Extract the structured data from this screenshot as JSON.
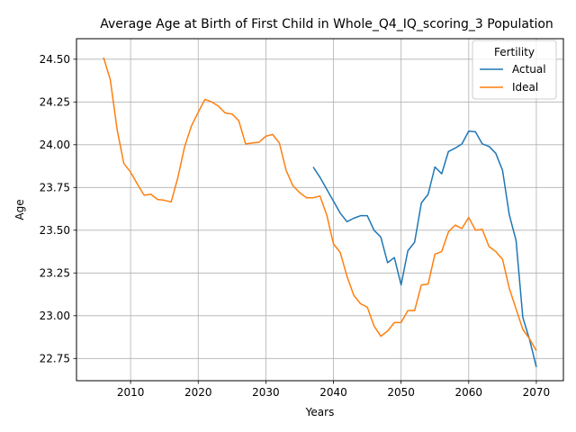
{
  "chart_data": {
    "type": "line",
    "title": "Average Age at Birth of First Child in Whole_Q4_IQ_scoring_3 Population",
    "xlabel": "Years",
    "ylabel": "Age",
    "xlim": [
      2002,
      2074
    ],
    "ylim": [
      22.62,
      24.62
    ],
    "xticks": [
      2010,
      2020,
      2030,
      2040,
      2050,
      2060,
      2070
    ],
    "yticks": [
      22.75,
      23.0,
      23.25,
      23.5,
      23.75,
      24.0,
      24.25,
      24.5
    ],
    "ytick_labels": [
      "22.75",
      "23.00",
      "23.25",
      "23.50",
      "23.75",
      "24.00",
      "24.25",
      "24.50"
    ],
    "grid": true,
    "legend": {
      "title": "Fertility",
      "placement": "top-right"
    },
    "series": [
      {
        "name": "Actual",
        "color": "#1f77b4",
        "x": [
          2037,
          2038,
          2039,
          2040,
          2041,
          2042,
          2043,
          2044,
          2045,
          2046,
          2047,
          2048,
          2049,
          2050,
          2051,
          2052,
          2053,
          2054,
          2055,
          2056,
          2057,
          2058,
          2059,
          2060,
          2061,
          2062,
          2063,
          2064,
          2065,
          2066,
          2067,
          2068,
          2069,
          2070
        ],
        "y": [
          23.87,
          23.81,
          23.74,
          23.67,
          23.6,
          23.55,
          23.57,
          23.585,
          23.585,
          23.5,
          23.46,
          23.31,
          23.34,
          23.18,
          23.38,
          23.43,
          23.66,
          23.71,
          23.87,
          23.83,
          23.96,
          23.98,
          24.005,
          24.08,
          24.075,
          24.005,
          23.99,
          23.95,
          23.85,
          23.59,
          23.44,
          22.99,
          22.86,
          22.7
        ]
      },
      {
        "name": "Ideal",
        "color": "#ff7f0e",
        "x": [
          2006,
          2007,
          2008,
          2009,
          2010,
          2011,
          2012,
          2013,
          2014,
          2015,
          2016,
          2017,
          2018,
          2019,
          2020,
          2021,
          2022,
          2023,
          2024,
          2025,
          2026,
          2027,
          2028,
          2029,
          2030,
          2031,
          2032,
          2033,
          2034,
          2035,
          2036,
          2037,
          2038,
          2039,
          2040,
          2041,
          2042,
          2043,
          2044,
          2045,
          2046,
          2047,
          2048,
          2049,
          2050,
          2051,
          2052,
          2053,
          2054,
          2055,
          2056,
          2057,
          2058,
          2059,
          2060,
          2061,
          2062,
          2063,
          2064,
          2065,
          2066,
          2067,
          2068,
          2069,
          2070
        ],
        "y": [
          24.51,
          24.38,
          24.09,
          23.89,
          23.84,
          23.77,
          23.705,
          23.71,
          23.68,
          23.675,
          23.665,
          23.81,
          23.99,
          24.11,
          24.19,
          24.265,
          24.25,
          24.225,
          24.185,
          24.18,
          24.14,
          24.005,
          24.01,
          24.015,
          24.05,
          24.06,
          24.01,
          23.85,
          23.76,
          23.72,
          23.69,
          23.69,
          23.7,
          23.59,
          23.42,
          23.37,
          23.23,
          23.12,
          23.07,
          23.05,
          22.94,
          22.88,
          22.91,
          22.96,
          22.96,
          23.03,
          23.03,
          23.18,
          23.185,
          23.36,
          23.375,
          23.49,
          23.53,
          23.51,
          23.575,
          23.5,
          23.505,
          23.405,
          23.375,
          23.33,
          23.16,
          23.04,
          22.92,
          22.865,
          22.795
        ]
      }
    ]
  }
}
